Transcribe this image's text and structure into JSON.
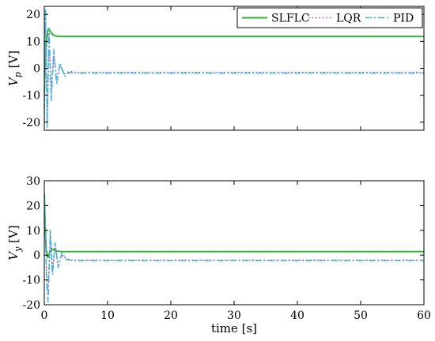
{
  "chart_data": [
    {
      "type": "line",
      "ylabel": "V_p [V]",
      "ylabel_main": "V",
      "ylabel_sub": "p",
      "ylabel_unit": " [V]",
      "xlabel": "",
      "xlim": [
        0,
        60
      ],
      "ylim": [
        -23,
        23
      ],
      "yticks": [
        -20,
        -10,
        0,
        10,
        20
      ],
      "xticks": [],
      "grid": false,
      "legend": "top-right",
      "series": [
        {
          "name": "SLFLC",
          "color": "#2fb52f",
          "style": "solid",
          "x": [
            0,
            0.15,
            0.35,
            0.6,
            0.9,
            1.2,
            1.6,
            2.1,
            2.8,
            4,
            10,
            20,
            30,
            40,
            50,
            60
          ],
          "y": [
            -10,
            3,
            10,
            14.5,
            14,
            12.8,
            12.1,
            11.9,
            11.8,
            11.8,
            11.8,
            11.8,
            11.8,
            11.8,
            11.8,
            11.8
          ]
        },
        {
          "name": "LQR",
          "color": "#a040c0",
          "style": "dotted",
          "x": [
            0,
            0.2,
            0.45,
            0.75,
            1.1,
            1.5,
            1.95,
            2.5,
            3.2,
            4,
            5,
            10,
            20,
            30,
            40,
            50,
            60
          ],
          "y": [
            -15,
            18,
            -20,
            12,
            -9,
            5,
            -4,
            1,
            -2,
            -1.2,
            -1.5,
            -1.5,
            -1.5,
            -1.5,
            -1.5,
            -1.5,
            -1.5
          ]
        },
        {
          "name": "PID",
          "color": "#3cb4dc",
          "style": "dashdot",
          "x": [
            0,
            0.2,
            0.45,
            0.75,
            1.1,
            1.5,
            1.95,
            2.5,
            3.2,
            4,
            5,
            10,
            20,
            30,
            40,
            50,
            60
          ],
          "y": [
            -20,
            22,
            -22,
            15,
            -12,
            7,
            -6,
            2,
            -3,
            -1.5,
            -1.8,
            -1.8,
            -1.8,
            -1.8,
            -1.8,
            -1.8,
            -1.8
          ]
        }
      ]
    },
    {
      "type": "line",
      "ylabel": "V_y [V]",
      "ylabel_main": "V",
      "ylabel_sub": "y",
      "ylabel_unit": " [V]",
      "xlabel": "time [s]",
      "xlim": [
        0,
        60
      ],
      "ylim": [
        -20,
        30
      ],
      "yticks": [
        -20,
        -10,
        0,
        10,
        20,
        30
      ],
      "xticks": [
        0,
        10,
        20,
        30,
        40,
        50,
        60
      ],
      "grid": false,
      "legend": "none",
      "series": [
        {
          "name": "SLFLC",
          "color": "#2fb52f",
          "style": "solid",
          "x": [
            0,
            0.1,
            0.3,
            0.55,
            0.85,
            1.2,
            1.7,
            2.3,
            3,
            4,
            10,
            20,
            30,
            40,
            50,
            60
          ],
          "y": [
            25,
            15,
            2,
            -1,
            1,
            2.5,
            1.8,
            1.5,
            1.4,
            1.4,
            1.4,
            1.4,
            1.4,
            1.4,
            1.4,
            1.4
          ]
        },
        {
          "name": "LQR",
          "color": "#a040c0",
          "style": "dotted",
          "x": [
            0,
            0.15,
            0.35,
            0.6,
            0.95,
            1.3,
            1.7,
            2.2,
            2.8,
            3.5,
            4.5,
            10,
            20,
            30,
            40,
            50,
            60
          ],
          "y": [
            20,
            10,
            -8,
            -15,
            8,
            -6,
            4,
            -4,
            0,
            -1.5,
            -2,
            -2,
            -2,
            -2,
            -2,
            -2,
            -2
          ]
        },
        {
          "name": "PID",
          "color": "#3cb4dc",
          "style": "dashdot",
          "x": [
            0,
            0.15,
            0.35,
            0.6,
            0.95,
            1.3,
            1.7,
            2.2,
            2.8,
            3.5,
            4.5,
            10,
            20,
            30,
            40,
            50,
            60
          ],
          "y": [
            24,
            12,
            -10,
            -19,
            10,
            -8,
            5,
            -5,
            1,
            -1.8,
            -2.2,
            -2.2,
            -2.2,
            -2.2,
            -2.2,
            -2.2,
            -2.2
          ]
        }
      ]
    }
  ]
}
